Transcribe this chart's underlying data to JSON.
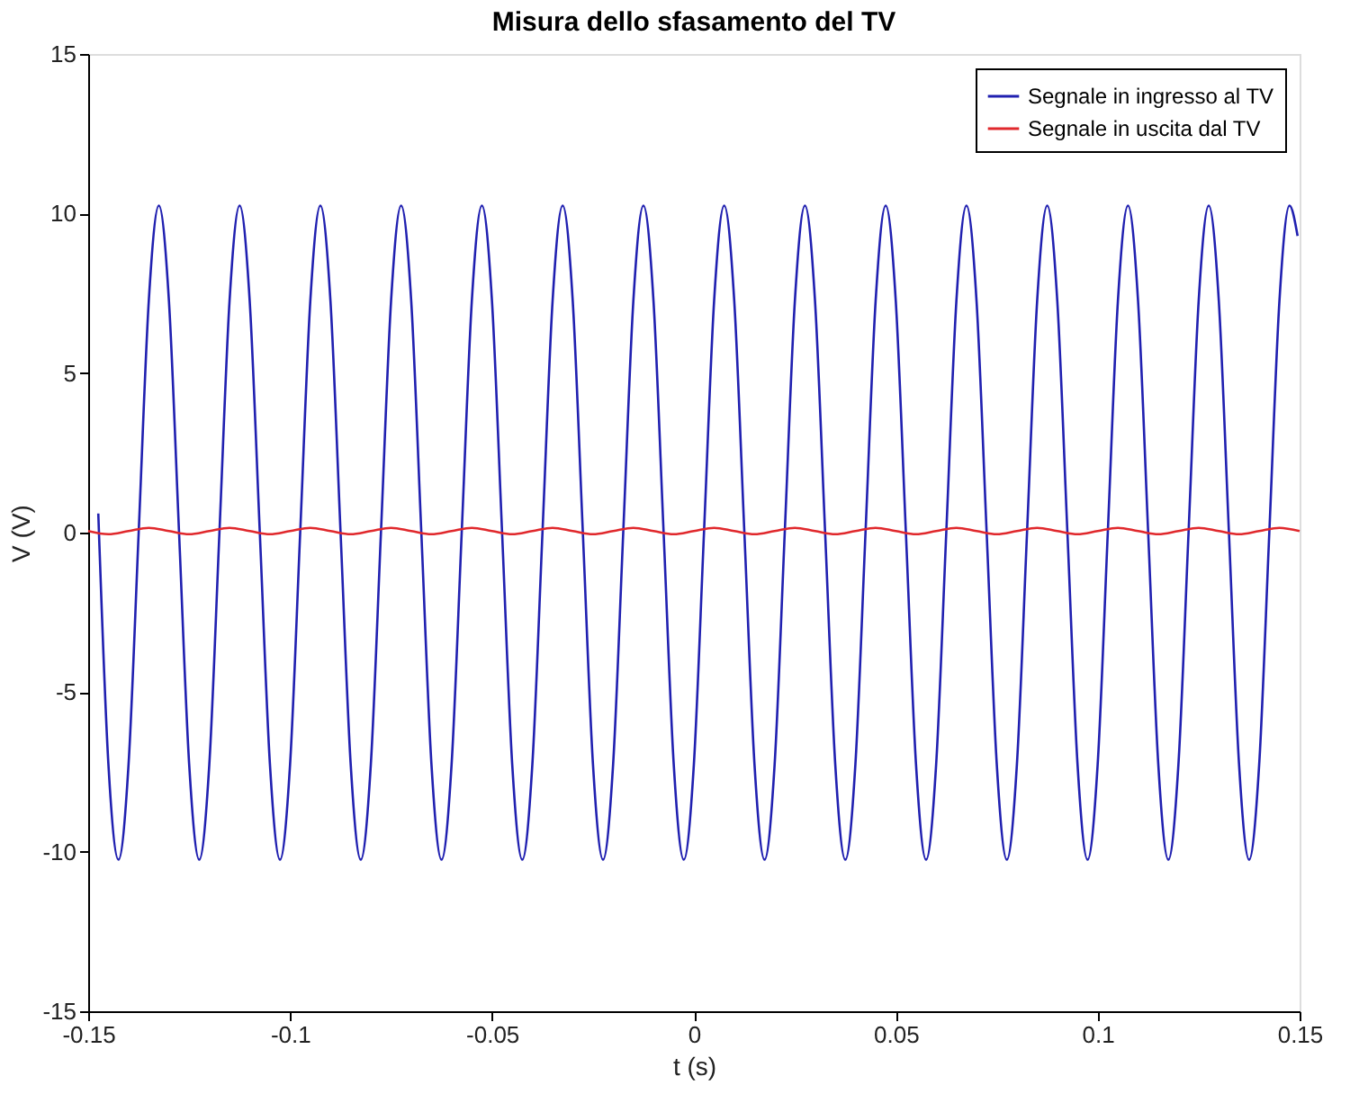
{
  "chart_data": {
    "type": "line",
    "title": "Misura dello sfasamento del TV",
    "xlabel": "t (s)",
    "ylabel": "V (V)",
    "xlim": [
      -0.15,
      0.15
    ],
    "xticks": [
      -0.15,
      -0.1,
      -0.05,
      0,
      0.05,
      0.1,
      0.15
    ],
    "ylim": [
      -15,
      15
    ],
    "yticks": [
      -15,
      -10,
      -5,
      0,
      5,
      10,
      15
    ],
    "grid": false,
    "legend": "top right",
    "line_style": "solid",
    "marker": "none",
    "series": [
      {
        "name": "Segnale in ingresso al TV",
        "color": "#2020b0",
        "x": [
          -0.1475,
          -0.145,
          -0.1425,
          -0.14,
          -0.1375,
          -0.135,
          -0.1325,
          -0.13,
          -0.1275,
          -0.125,
          -0.1225,
          -0.12,
          -0.1175,
          -0.115,
          -0.1125,
          -0.11,
          -0.1075,
          -0.105,
          -0.1025,
          -0.1,
          -0.0975,
          -0.095,
          -0.0925,
          -0.09,
          -0.0875,
          -0.085,
          -0.0825,
          -0.08,
          -0.0775,
          -0.075,
          -0.0725,
          -0.07,
          -0.0675,
          -0.065,
          -0.0625,
          -0.06,
          -0.0575,
          -0.055,
          -0.0525,
          -0.05,
          -0.0475,
          -0.045,
          -0.0425,
          -0.04,
          -0.0375,
          -0.035,
          -0.0325,
          -0.03,
          -0.0275,
          -0.025,
          -0.0225,
          -0.02,
          -0.0175,
          -0.015,
          -0.0125,
          -0.01,
          -0.0075,
          -0.005,
          -0.0025,
          0,
          0.0025,
          0.005,
          0.0075,
          0.01,
          0.0125,
          0.015,
          0.0175,
          0.02,
          0.0225,
          0.025,
          0.0275,
          0.03,
          0.0325,
          0.035,
          0.0375,
          0.04,
          0.0425,
          0.045,
          0.0475,
          0.05,
          0.0525,
          0.055,
          0.0575,
          0.06,
          0.0625,
          0.065,
          0.0675,
          0.07,
          0.0725,
          0.075,
          0.0775,
          0.08,
          0.0825,
          0.085,
          0.0875,
          0.09,
          0.0925,
          0.095,
          0.0975,
          0.1,
          0.1025,
          0.105,
          0.1075,
          0.11,
          0.1125,
          0.115,
          0.1175,
          0.12,
          0.1225,
          0.125,
          0.1275,
          0.13,
          0.1325,
          0.135,
          0.1375,
          0.14,
          0.1425,
          0.145,
          0.1475,
          0.1495
        ],
        "values": [
          0.6,
          -7.25,
          -10.25,
          -7.25,
          0,
          7.25,
          10.25,
          7.25,
          0,
          -7.25,
          -10.25,
          -7.25,
          0,
          7.25,
          10.25,
          7.25,
          0,
          -7.25,
          -10.25,
          -7.25,
          0,
          7.25,
          10.25,
          7.25,
          0,
          -7.25,
          -10.25,
          -7.25,
          0,
          7.25,
          10.25,
          7.25,
          0,
          -7.25,
          -10.25,
          -7.25,
          0,
          7.25,
          10.25,
          7.25,
          0,
          -7.25,
          -10.25,
          -7.25,
          0,
          7.25,
          10.25,
          7.25,
          0,
          -7.25,
          -10.25,
          -7.25,
          0,
          7.25,
          10.25,
          7.25,
          0,
          -7.25,
          -10.25,
          -7.25,
          0,
          7.25,
          10.25,
          7.25,
          0,
          -7.25,
          -10.25,
          -7.25,
          0,
          7.25,
          10.25,
          7.25,
          0,
          -7.25,
          -10.25,
          -7.25,
          0,
          7.25,
          10.25,
          7.25,
          0,
          -7.25,
          -10.25,
          -7.25,
          0,
          7.25,
          10.25,
          7.25,
          0,
          -7.25,
          -10.25,
          -7.25,
          0,
          7.25,
          10.25,
          7.25,
          0,
          -7.25,
          -10.25,
          -7.25,
          0,
          7.25,
          10.25,
          7.25,
          0,
          -7.25,
          -10.25,
          -7.25,
          0,
          7.25,
          10.25,
          7.25,
          0,
          -7.25,
          -10.25,
          -7.25,
          0,
          7.25,
          10.25,
          9.3
        ]
      },
      {
        "name": "Segnale in uscita dal TV",
        "color": "#e0282c",
        "x": [
          -0.15,
          -0.145,
          -0.14,
          -0.135,
          -0.13,
          -0.125,
          -0.12,
          -0.115,
          -0.11,
          -0.105,
          -0.1,
          -0.095,
          -0.09,
          -0.085,
          -0.08,
          -0.075,
          -0.07,
          -0.065,
          -0.06,
          -0.055,
          -0.05,
          -0.045,
          -0.04,
          -0.035,
          -0.03,
          -0.025,
          -0.02,
          -0.015,
          -0.01,
          -0.005,
          0,
          0.005,
          0.01,
          0.015,
          0.02,
          0.025,
          0.03,
          0.035,
          0.04,
          0.045,
          0.05,
          0.055,
          0.06,
          0.065,
          0.07,
          0.075,
          0.08,
          0.085,
          0.09,
          0.095,
          0.1,
          0.105,
          0.11,
          0.115,
          0.12,
          0.125,
          0.13,
          0.135,
          0.14,
          0.145,
          0.15
        ],
        "values": [
          0.05,
          -0.05,
          0.05,
          0.15,
          0.05,
          -0.05,
          0.05,
          0.15,
          0.05,
          -0.05,
          0.05,
          0.15,
          0.05,
          -0.05,
          0.05,
          0.15,
          0.05,
          -0.05,
          0.05,
          0.15,
          0.05,
          -0.05,
          0.05,
          0.15,
          0.05,
          -0.05,
          0.05,
          0.15,
          0.05,
          -0.05,
          0.05,
          0.15,
          0.05,
          -0.05,
          0.05,
          0.15,
          0.05,
          -0.05,
          0.05,
          0.15,
          0.05,
          -0.05,
          0.05,
          0.15,
          0.05,
          -0.05,
          0.05,
          0.15,
          0.05,
          -0.05,
          0.05,
          0.15,
          0.05,
          -0.05,
          0.05,
          0.15,
          0.05,
          -0.05,
          0.05,
          0.15,
          0.05
        ]
      }
    ]
  }
}
